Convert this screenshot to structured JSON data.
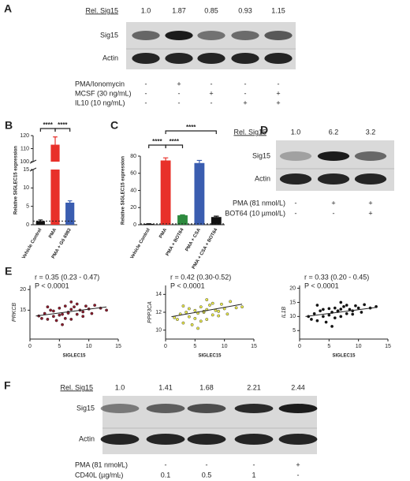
{
  "blots": [
    {
      "label": "A",
      "header": "Rel. Sig15",
      "values": [
        1.0,
        1.87,
        0.85,
        0.93,
        1.15
      ],
      "value_labels": [
        "1.0",
        "1.87",
        "0.85",
        "0.93",
        "1.15"
      ],
      "rows": [
        "Sig15",
        "Actin"
      ],
      "treatments": [
        {
          "name": "PMA/Ionomycin",
          "marks": [
            "-",
            "+",
            "-",
            "-",
            "-"
          ]
        },
        {
          "name": "MCSF (30 ng/mL)",
          "marks": [
            "-",
            "-",
            "+",
            "-",
            "+"
          ]
        },
        {
          "name": "IL10 (10 ng/mL)",
          "marks": [
            "-",
            "-",
            "-",
            "+",
            "+"
          ]
        }
      ]
    },
    {
      "label": "D",
      "header": "Rel. Sig15",
      "values": [
        1.0,
        6.2,
        3.2
      ],
      "value_labels": [
        "1.0",
        "6.2",
        "3.2"
      ],
      "rows": [
        "Sig15",
        "Actin"
      ],
      "treatments": [
        {
          "name": "PMA (81 nmol/L)",
          "marks": [
            "-",
            "+",
            "+"
          ]
        },
        {
          "name": "BOT64 (10 µmol/L)",
          "marks": [
            "-",
            "-",
            "+"
          ]
        }
      ]
    },
    {
      "label": "F",
      "header": "Rel. Sig15",
      "values": [
        1.0,
        1.41,
        1.68,
        2.21,
        2.44
      ],
      "value_labels": [
        "1.0",
        "1.41",
        "1.68",
        "2.21",
        "2.44"
      ],
      "rows": [
        "Sig15",
        "Actin"
      ],
      "treatments": [
        {
          "name": "PMA (81 nmol/L)",
          "marks": [
            "-",
            "-",
            "-",
            "-",
            "+"
          ]
        },
        {
          "name": "CD40L (µg/mL)",
          "marks": [
            "-",
            "0.1",
            "0.5",
            "1",
            "-"
          ]
        }
      ]
    }
  ],
  "chart_data": [
    {
      "type": "bar",
      "label": "B",
      "ylabel": "Relative SIGLEC15 expression",
      "categories": [
        "Vehicle Control",
        "PMA",
        "PMA + Gö 6983"
      ],
      "values": [
        1,
        113,
        6
      ],
      "errors": [
        0.3,
        6,
        0.5
      ],
      "colors": [
        "#111111",
        "#e8302a",
        "#3a5db0"
      ],
      "ylim": [
        0,
        120
      ],
      "axis_break": [
        15,
        100
      ],
      "yticks": [
        0,
        5,
        10,
        15,
        100,
        110,
        120
      ],
      "reference_line": 1,
      "annotations": [
        "****",
        "****"
      ]
    },
    {
      "type": "bar",
      "label": "C",
      "ylabel": "Relative SIGLEC15 expression",
      "categories": [
        "Vehicle Control",
        "PMA",
        "PMA + BOT64",
        "PMA + CSA",
        "PMA + CSA + BOT64"
      ],
      "values": [
        1,
        75,
        11,
        72,
        9
      ],
      "errors": [
        0.2,
        3,
        0.5,
        3,
        1
      ],
      "colors": [
        "#111111",
        "#e8302a",
        "#2d8a3e",
        "#3a5db0",
        "#111111"
      ],
      "ylim": [
        0,
        80
      ],
      "yticks": [
        0,
        20,
        40,
        60,
        80
      ],
      "reference_line": 1,
      "annotations": [
        "****",
        "****",
        "****"
      ]
    },
    {
      "type": "scatter",
      "label": "E",
      "xlabel": "SIGLEC15",
      "ylabel": "PRKCB",
      "annotations": [
        "r = 0.35 (0.23 - 0.47)",
        "P < 0.0001"
      ],
      "color": "#8b1a2b",
      "x": [
        2,
        2.5,
        3,
        3.5,
        4,
        4,
        4.5,
        5,
        5,
        5.5,
        6,
        6,
        6.5,
        7,
        7,
        7.5,
        8,
        8,
        8.5,
        9,
        9.5,
        10,
        10.5,
        11,
        12,
        13,
        3,
        5.5,
        7,
        9,
        1.5,
        6.5
      ],
      "y": [
        13,
        14.2,
        12.8,
        15,
        13.5,
        14.8,
        12.5,
        15.5,
        13.8,
        14,
        16,
        13,
        14.5,
        15.2,
        12.8,
        15.8,
        14,
        16.5,
        15,
        14.6,
        16,
        15.3,
        14.2,
        16.2,
        15.5,
        15,
        15.8,
        11.5,
        17,
        13.5,
        13.6,
        14.3
      ],
      "fit": {
        "x": [
          1,
          13
        ],
        "y": [
          13.6,
          15.8
        ]
      },
      "xlim": [
        0,
        15
      ],
      "xticks": [
        0,
        5,
        10,
        15
      ],
      "ylim": [
        8,
        21
      ],
      "yticks": [
        15,
        20
      ]
    },
    {
      "type": "scatter",
      "xlabel": "SIGLEC15",
      "ylabel": "PPP3CA",
      "annotations": [
        "r = 0.42 (0.30-0.52)",
        "P < 0.0001"
      ],
      "color": "#e8e84a",
      "x": [
        2,
        2.5,
        3,
        3.5,
        4,
        4,
        4.5,
        5,
        5,
        5.5,
        6,
        6,
        6.5,
        7,
        7,
        7.5,
        8,
        8,
        8.5,
        9,
        9.5,
        10,
        10.5,
        11,
        12,
        13,
        3,
        5.5,
        7,
        9,
        1.5,
        6.5
      ],
      "y": [
        11.2,
        11.8,
        10.8,
        12,
        11.5,
        12.4,
        10.6,
        12.2,
        11.3,
        11.9,
        12.6,
        11,
        12,
        12.3,
        11.2,
        12.8,
        11.7,
        13,
        12.2,
        12.1,
        12.9,
        12.4,
        11.8,
        13.2,
        12.5,
        12.6,
        12.7,
        10.2,
        13.4,
        11.6,
        11.4,
        12.1
      ],
      "fit": {
        "x": [
          1,
          13
        ],
        "y": [
          11.5,
          12.9
        ]
      },
      "xlim": [
        0,
        15
      ],
      "xticks": [
        0,
        5,
        10,
        15
      ],
      "ylim": [
        9,
        15
      ],
      "yticks": [
        10,
        12,
        14
      ]
    },
    {
      "type": "scatter",
      "xlabel": "SIGLEC15",
      "ylabel": "IL1B",
      "annotations": [
        "r = 0.33 (0.20 - 0.45)",
        "P < 0.0001"
      ],
      "color": "#111111",
      "x": [
        2,
        2.5,
        3,
        3.5,
        4,
        4,
        4.5,
        5,
        5,
        5.5,
        6,
        6,
        6.5,
        7,
        7,
        7.5,
        8,
        8,
        8.5,
        9,
        9.5,
        10,
        10.5,
        11,
        12,
        13,
        3,
        5.5,
        7,
        9,
        1.5,
        6.5
      ],
      "y": [
        9,
        11,
        8.5,
        12,
        10,
        12.5,
        8,
        12.8,
        10.5,
        11.5,
        13,
        9.5,
        12,
        12.6,
        10,
        13.5,
        11,
        14,
        12.5,
        12,
        13.8,
        13,
        11.5,
        14.2,
        13,
        13.5,
        14,
        6.5,
        15,
        10.8,
        10,
        11.8
      ],
      "fit": {
        "x": [
          1,
          13
        ],
        "y": [
          10,
          13.2
        ]
      },
      "xlim": [
        0,
        15
      ],
      "xticks": [
        0,
        5,
        10,
        15
      ],
      "ylim": [
        2,
        21
      ],
      "yticks": [
        5,
        10,
        15,
        20
      ]
    }
  ]
}
